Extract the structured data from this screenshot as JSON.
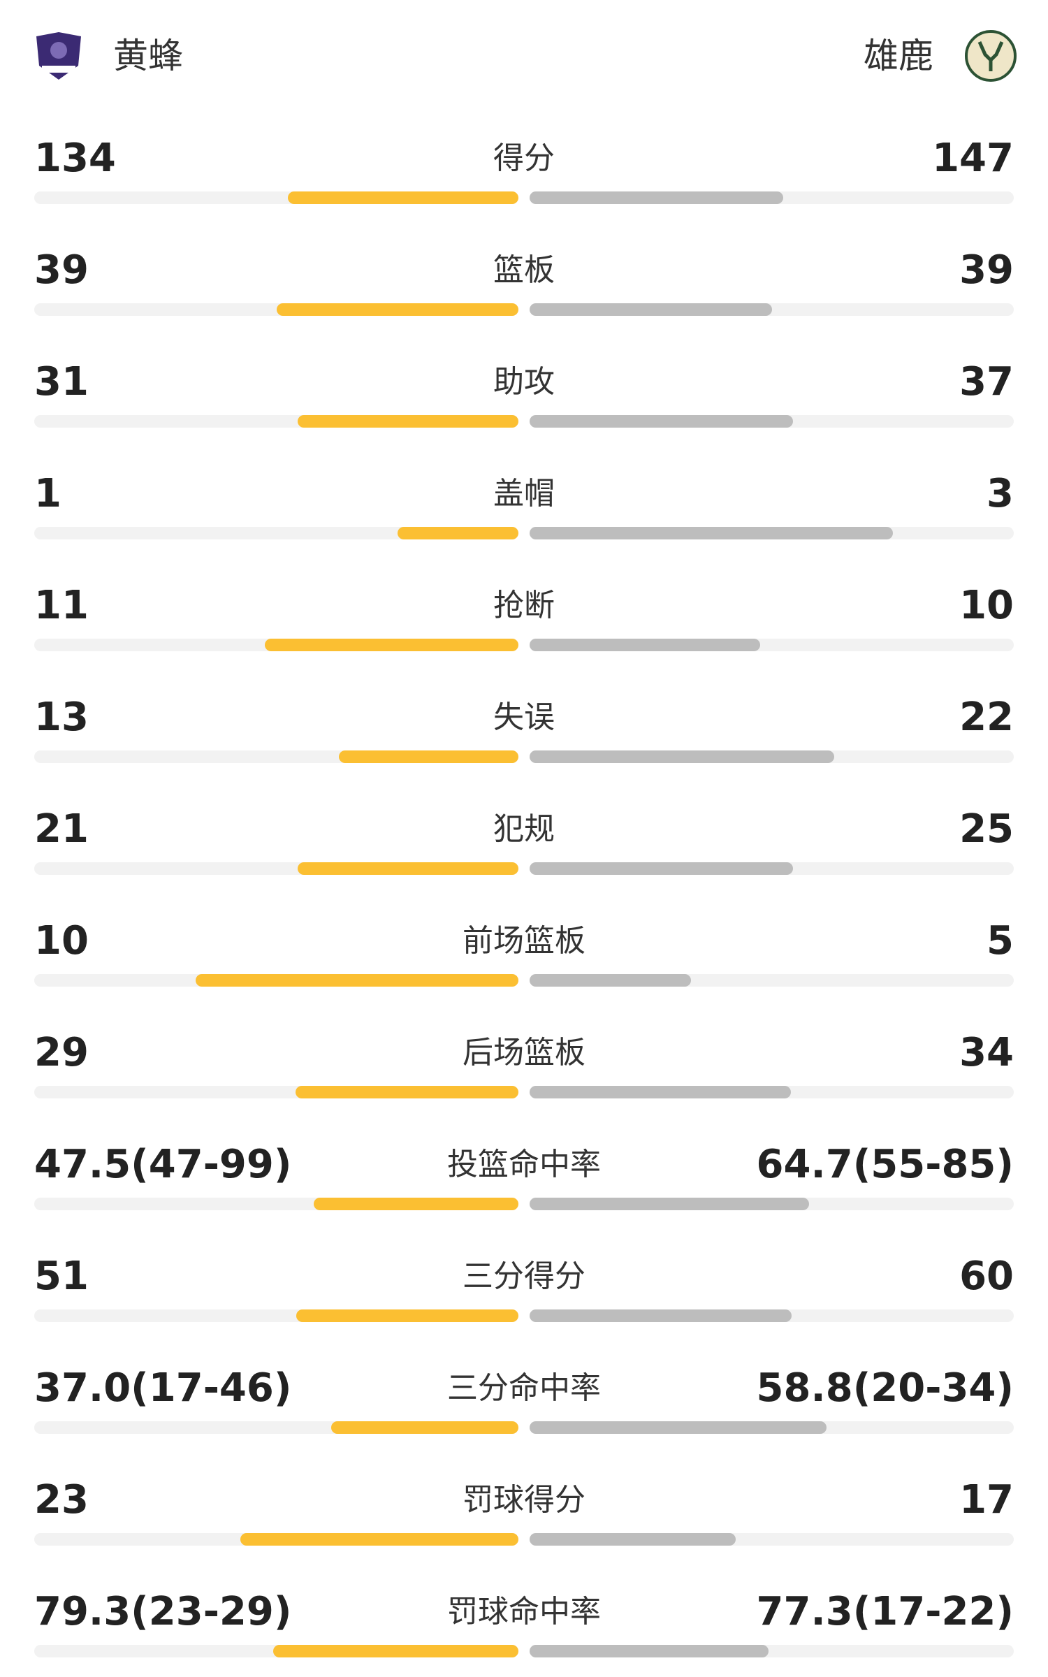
{
  "header": {
    "home": "黄蜂",
    "away": "雄鹿"
  },
  "stats": [
    {
      "label": "得分",
      "home": 134,
      "away": 147
    },
    {
      "label": "篮板",
      "home": 39,
      "away": 39
    },
    {
      "label": "助攻",
      "home": 31,
      "away": 37
    },
    {
      "label": "盖帽",
      "home": 1,
      "away": 3
    },
    {
      "label": "抢断",
      "home": 11,
      "away": 10
    },
    {
      "label": "失误",
      "home": 13,
      "away": 22
    },
    {
      "label": "犯规",
      "home": 21,
      "away": 25
    },
    {
      "label": "前场篮板",
      "home": 10,
      "away": 5
    },
    {
      "label": "后场篮板",
      "home": 29,
      "away": 34
    },
    {
      "label": "投篮命中率",
      "home": {
        "value": 47.5,
        "label": "47.5(47-99)"
      },
      "away": {
        "value": 64.7,
        "label": "64.7(55-85)"
      }
    },
    {
      "label": "三分得分",
      "home": 51,
      "away": 60
    },
    {
      "label": "三分命中率",
      "home": {
        "value": 37.0,
        "label": "37.0(17-46)"
      },
      "away": {
        "value": 58.8,
        "label": "58.8(20-34)"
      }
    },
    {
      "label": "罚球得分",
      "home": 23,
      "away": 17
    },
    {
      "label": "罚球命中率",
      "home": {
        "value": 79.3,
        "label": "79.3(23-29)"
      },
      "away": {
        "value": 77.3,
        "label": "77.3(17-22)"
      }
    }
  ]
}
